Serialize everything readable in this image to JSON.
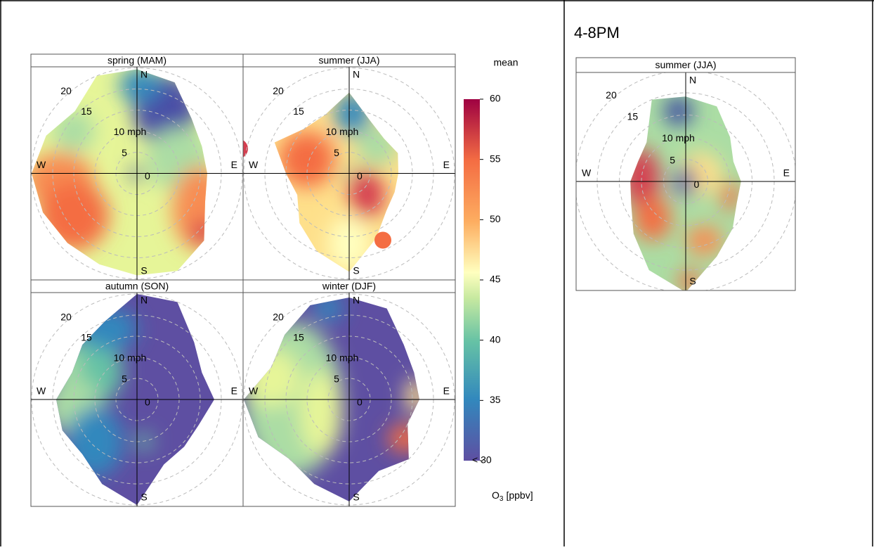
{
  "layout_title": "4-8PM",
  "polar_axis": {
    "compass": [
      "N",
      "E",
      "S",
      "W"
    ],
    "ring_labels": [
      {
        "value": 0,
        "label": "0"
      },
      {
        "value": 5,
        "label": "5"
      },
      {
        "value": 10,
        "label": "10 mph"
      },
      {
        "value": 15,
        "label": "15"
      },
      {
        "value": 20,
        "label": "20"
      }
    ]
  },
  "left_figure": {
    "panels": [
      {
        "title": "spring (MAM)"
      },
      {
        "title": "summer (JJA)"
      },
      {
        "title": "autumn (SON)"
      },
      {
        "title": "winter (DJF)"
      }
    ],
    "legend_title": "mean",
    "colorbar": {
      "lim": [
        30,
        60
      ],
      "ticks": [
        35,
        40,
        45,
        50,
        55,
        60
      ],
      "min_label": "< 30"
    },
    "unit": {
      "symbol": "O",
      "subscript": "3",
      "text": "[ppbv]"
    }
  },
  "right_figure": {
    "panels": [
      {
        "title": "summer (JJA)"
      }
    ]
  }
}
